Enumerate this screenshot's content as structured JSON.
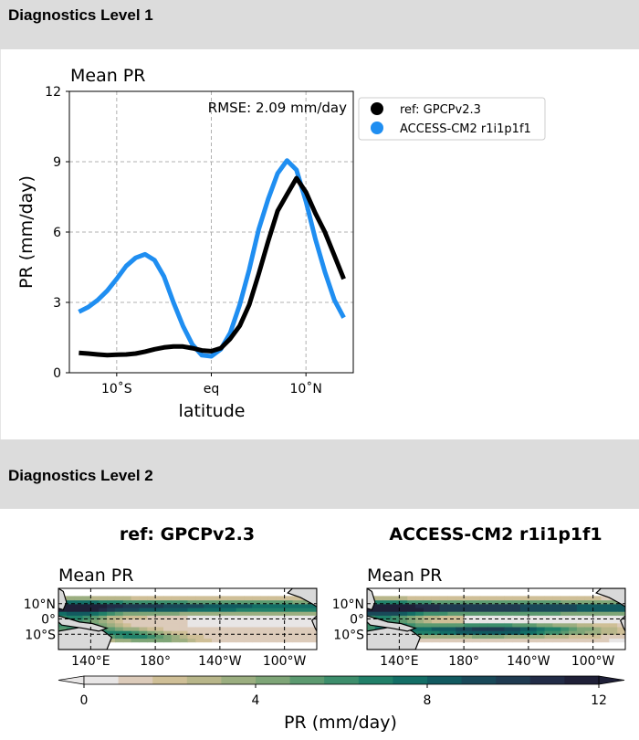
{
  "sections": {
    "level1": {
      "title": "Diagnostics Level 1"
    },
    "level2": {
      "title": "Diagnostics Level 2"
    }
  },
  "chart_data": [
    {
      "type": "line",
      "title": "Mean PR",
      "xlabel": "latitude",
      "ylabel": "PR (mm/day)",
      "annotation": "RMSE: 2.09 mm/day",
      "x_ticks": [
        {
          "value": -10,
          "label": "10˚S"
        },
        {
          "value": 0,
          "label": "eq"
        },
        {
          "value": 10,
          "label": "10˚N"
        }
      ],
      "y_ticks": [
        0,
        3,
        6,
        9,
        12
      ],
      "xlim": [
        -15,
        15
      ],
      "ylim": [
        0,
        12
      ],
      "grid": true,
      "legend_position": "outside-right-top",
      "series": [
        {
          "name": "ref: GPCPv2.3",
          "color": "#000000",
          "x": [
            -14,
            -13,
            -12,
            -11,
            -10,
            -9,
            -8,
            -7,
            -6,
            -5,
            -4,
            -3,
            -2,
            -1,
            0,
            1,
            2,
            3,
            4,
            5,
            6,
            7,
            8,
            9,
            10,
            11,
            12,
            13,
            14
          ],
          "y": [
            0.85,
            0.82,
            0.78,
            0.75,
            0.77,
            0.78,
            0.82,
            0.9,
            1.0,
            1.08,
            1.12,
            1.12,
            1.05,
            0.95,
            0.92,
            1.05,
            1.45,
            2.0,
            2.9,
            4.2,
            5.6,
            6.9,
            7.6,
            8.3,
            7.7,
            6.8,
            6.0,
            5.0,
            4.0
          ]
        },
        {
          "name": "ACCESS-CM2 r1i1p1f1",
          "color": "#1f8ef1",
          "x": [
            -14,
            -13,
            -12,
            -11,
            -10,
            -9,
            -8,
            -7,
            -6,
            -5,
            -4,
            -3,
            -2,
            -1,
            0,
            1,
            2,
            3,
            4,
            5,
            6,
            7,
            8,
            9,
            10,
            11,
            12,
            13,
            14
          ],
          "y": [
            2.6,
            2.8,
            3.1,
            3.5,
            4.0,
            4.55,
            4.9,
            5.05,
            4.8,
            4.1,
            3.0,
            2.0,
            1.2,
            0.75,
            0.7,
            1.0,
            1.7,
            2.9,
            4.4,
            6.1,
            7.4,
            8.5,
            9.05,
            8.65,
            7.3,
            5.7,
            4.3,
            3.1,
            2.35
          ]
        }
      ]
    },
    {
      "type": "heatmap",
      "panel_title": "ref: GPCPv2.3",
      "title": "Mean PR",
      "y_ticks": [
        "10°N",
        "0°",
        "10°S"
      ],
      "x_ticks": [
        "140°E",
        "180°",
        "140°W",
        "100°W"
      ],
      "lon_range": [
        120,
        280
      ],
      "lat_range": [
        -20,
        20
      ],
      "field": "gpcp"
    },
    {
      "type": "heatmap",
      "panel_title": "ACCESS-CM2 r1i1p1f1",
      "title": "Mean PR",
      "y_ticks": [
        "10°N",
        "0°",
        "10°S"
      ],
      "x_ticks": [
        "140°E",
        "180°",
        "140°W",
        "100°W"
      ],
      "lon_range": [
        120,
        280
      ],
      "lat_range": [
        -20,
        20
      ],
      "field": "model"
    },
    {
      "type": "colorbar",
      "label": "PR (mm/day)",
      "ticks": [
        0,
        4,
        8,
        12
      ],
      "range": [
        0,
        12
      ],
      "extend": "both",
      "colors": [
        "#e8e6e6",
        "#dccbba",
        "#cfbf97",
        "#b8b68a",
        "#9bae80",
        "#7ea577",
        "#5c9a70",
        "#3d8e6c",
        "#218069",
        "#136e66",
        "#125a60",
        "#194959",
        "#1f3b51",
        "#222c47",
        "#1f2038"
      ]
    }
  ]
}
